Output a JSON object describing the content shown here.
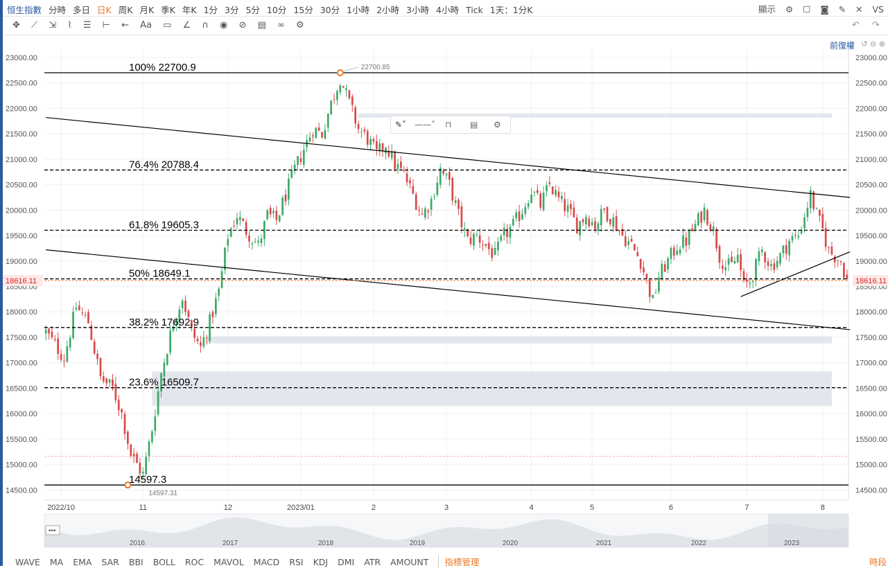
{
  "topbar": {
    "tabs": [
      "恒生指數",
      "分時",
      "多日",
      "日K",
      "周K",
      "月K",
      "季K",
      "年K",
      "1分",
      "3分",
      "5分",
      "10分",
      "15分",
      "30分",
      "1小時",
      "2小時",
      "3小時",
      "4小時",
      "Tick",
      "1天：1分K"
    ],
    "active_tab": "日K",
    "display_label": "顯示",
    "right_icons": [
      "gear-icon",
      "layout-icon",
      "camera-icon",
      "pen-icon",
      "collapse-icon"
    ],
    "corner": "VS"
  },
  "toolbar": {
    "tools": [
      "crosshair-icon",
      "trend-line-icon",
      "ray-icon",
      "polyline-icon",
      "fib-icon",
      "measure-icon",
      "arrow-icon",
      "Aa",
      "comment-icon",
      "pencil-icon",
      "magnet-icon",
      "eye-icon",
      "hide-icon",
      "trash-icon",
      "link-icon",
      "settings-icon"
    ],
    "undo_icon": "undo-icon",
    "redo_icon": "redo-icon"
  },
  "restore_label": "前復權",
  "drawtool_icons": [
    "paint-icon",
    "line-style-icon",
    "unlock-icon",
    "trash-icon",
    "gear-icon"
  ],
  "bottombar": {
    "indicators": [
      "WAVE",
      "MA",
      "EMA",
      "SAR",
      "BBI",
      "BOLL",
      "ROC",
      "MAVOL",
      "MACD",
      "RSI",
      "KDJ",
      "DMI",
      "ATR",
      "AMOUNT"
    ],
    "manage_label": "指標管理",
    "right_label": "時段"
  },
  "chart_data": {
    "type": "candlestick",
    "colors": {
      "up": "#3da96b",
      "down": "#d84a4a",
      "grid": "#f0f0f0",
      "fib": "#000000",
      "price_line": "#e8782a",
      "price_tag": "#e02020"
    },
    "y_ticks": [
      "23000.00",
      "22500.00",
      "22000.00",
      "21500.00",
      "21000.00",
      "20500.00",
      "20000.00",
      "19500.00",
      "19000.00",
      "18500.00",
      "18000.00",
      "17500.00",
      "17000.00",
      "16500.00",
      "16000.00",
      "15500.00",
      "15000.00",
      "14500.00"
    ],
    "ylim": [
      14300,
      23150
    ],
    "x_labels": [
      "2022/10",
      "11",
      "12",
      "2023/01",
      "2",
      "3",
      "4",
      "5",
      "6",
      "7",
      "8"
    ],
    "x_label_index": [
      5,
      32,
      60,
      84,
      108,
      132,
      160,
      180,
      206,
      231,
      256
    ],
    "candle_count": 265,
    "current_price": "18616.11",
    "current_value": 18616.11,
    "high_label": "22700.85",
    "high_value": 22700.85,
    "high_index": 97,
    "low_label": "14597.31",
    "low_value": 14597.31,
    "low_index": 27,
    "fib_levels": [
      {
        "label": "100% 22700.9",
        "value": 22700.9
      },
      {
        "label": "76.4% 20788.4",
        "value": 20788.4
      },
      {
        "label": "61.8% 19605.3",
        "value": 19605.3
      },
      {
        "label": "50% 18649.1",
        "value": 18649.1
      },
      {
        "label": "38.2% 17692.9",
        "value": 17692.9
      },
      {
        "label": "23.6% 16509.7",
        "value": 16509.7
      },
      {
        "label": "14597.3",
        "value": 14597.3
      }
    ],
    "channel_lines": [
      {
        "from": [
          0,
          21820
        ],
        "to": [
          265,
          20250
        ]
      },
      {
        "from": [
          0,
          19220
        ],
        "to": [
          265,
          17650
        ]
      },
      {
        "from": [
          229,
          18300
        ],
        "to": [
          265,
          19180
        ]
      }
    ],
    "zones": [
      {
        "from_index": 103,
        "lo": 21820,
        "hi": 21900
      },
      {
        "from_index": 53,
        "lo": 17380,
        "hi": 17520
      },
      {
        "from_index": 35,
        "lo": 16150,
        "hi": 16830
      }
    ],
    "close_path": [
      [
        0,
        17600
      ],
      [
        6,
        17100
      ],
      [
        10,
        18100
      ],
      [
        14,
        17800
      ],
      [
        18,
        16700
      ],
      [
        22,
        16500
      ],
      [
        25,
        16000
      ],
      [
        28,
        15200
      ],
      [
        30,
        15000
      ],
      [
        32,
        14800
      ],
      [
        35,
        15700
      ],
      [
        38,
        16800
      ],
      [
        42,
        17800
      ],
      [
        45,
        18300
      ],
      [
        48,
        17600
      ],
      [
        51,
        17300
      ],
      [
        54,
        17800
      ],
      [
        57,
        18400
      ],
      [
        60,
        19500
      ],
      [
        63,
        19900
      ],
      [
        66,
        19600
      ],
      [
        70,
        19300
      ],
      [
        73,
        19900
      ],
      [
        76,
        19800
      ],
      [
        79,
        20300
      ],
      [
        82,
        20800
      ],
      [
        85,
        21200
      ],
      [
        88,
        21600
      ],
      [
        91,
        21500
      ],
      [
        94,
        22100
      ],
      [
        97,
        22600
      ],
      [
        100,
        22100
      ],
      [
        103,
        21600
      ],
      [
        106,
        21400
      ],
      [
        109,
        21100
      ],
      [
        112,
        21300
      ],
      [
        115,
        20900
      ],
      [
        118,
        20700
      ],
      [
        121,
        20300
      ],
      [
        124,
        19900
      ],
      [
        127,
        20200
      ],
      [
        130,
        20800
      ],
      [
        133,
        20500
      ],
      [
        136,
        19900
      ],
      [
        139,
        19400
      ],
      [
        142,
        19500
      ],
      [
        145,
        19300
      ],
      [
        148,
        19100
      ],
      [
        151,
        19500
      ],
      [
        154,
        19700
      ],
      [
        157,
        20000
      ],
      [
        160,
        20400
      ],
      [
        163,
        20100
      ],
      [
        166,
        20500
      ],
      [
        169,
        20200
      ],
      [
        172,
        20000
      ],
      [
        175,
        19700
      ],
      [
        178,
        19900
      ],
      [
        181,
        19700
      ],
      [
        184,
        20000
      ],
      [
        187,
        19800
      ],
      [
        190,
        19500
      ],
      [
        193,
        19300
      ],
      [
        196,
        19000
      ],
      [
        198,
        18600
      ],
      [
        200,
        18200
      ],
      [
        202,
        18700
      ],
      [
        205,
        19000
      ],
      [
        208,
        19300
      ],
      [
        211,
        19400
      ],
      [
        214,
        19700
      ],
      [
        217,
        20000
      ],
      [
        220,
        19600
      ],
      [
        222,
        19100
      ],
      [
        224,
        18900
      ],
      [
        226,
        18900
      ],
      [
        228,
        19100
      ],
      [
        230,
        18500
      ],
      [
        232,
        18600
      ],
      [
        234,
        18900
      ],
      [
        236,
        19200
      ],
      [
        239,
        18900
      ],
      [
        242,
        19100
      ],
      [
        245,
        19400
      ],
      [
        248,
        19500
      ],
      [
        250,
        19900
      ],
      [
        252,
        20300
      ],
      [
        254,
        19900
      ],
      [
        256,
        19600
      ],
      [
        258,
        19200
      ],
      [
        260,
        19100
      ],
      [
        262,
        19000
      ],
      [
        264,
        18616
      ]
    ],
    "navigator_years": [
      "2016",
      "2017",
      "2018",
      "2019",
      "2020",
      "2021",
      "2022",
      "2023"
    ]
  }
}
